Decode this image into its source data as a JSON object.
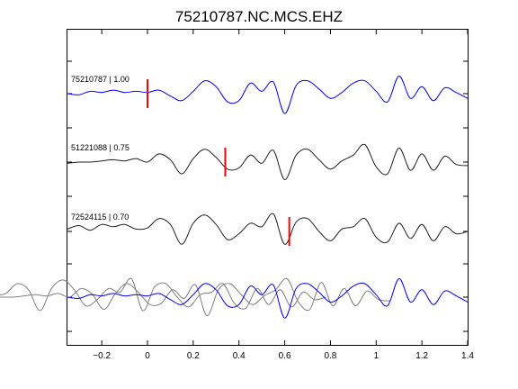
{
  "chart_data": {
    "type": "line",
    "title": "75210787.NC.MCS.EHZ",
    "xlabel": "",
    "ylabel": "",
    "xlim": [
      -0.35,
      1.4
    ],
    "xticks": [
      -0.2,
      0,
      0.2,
      0.4,
      0.6,
      0.8,
      1,
      1.2,
      1.4
    ],
    "xtick_labels": [
      "−0.2",
      "0",
      "0.2",
      "0.4",
      "0.6",
      "0.8",
      "1",
      "1.2",
      "1.4"
    ],
    "grid": false,
    "colors": {
      "reference": "#0000ff",
      "other": "#202020",
      "overlay_other": "#808080",
      "pick": "#ff0000"
    },
    "traces": [
      {
        "label": "75210787 | 1.00",
        "id": "75210787",
        "cc": 1.0,
        "pick_time": 0.0,
        "color": "#0000ff",
        "x": [
          -0.35,
          -0.3,
          -0.25,
          -0.2,
          -0.15,
          -0.1,
          -0.05,
          0,
          0.05,
          0.1,
          0.15,
          0.2,
          0.25,
          0.3,
          0.35,
          0.4,
          0.45,
          0.5,
          0.55,
          0.6,
          0.65,
          0.7,
          0.75,
          0.8,
          0.85,
          0.9,
          0.95,
          1.0,
          1.05,
          1.1,
          1.15,
          1.2,
          1.25,
          1.3,
          1.35,
          1.4
        ],
        "y": [
          0.0,
          -0.05,
          0.1,
          0.05,
          0.15,
          0.05,
          0.1,
          0.05,
          0.15,
          -0.1,
          -0.3,
          0.1,
          0.55,
          0.3,
          -0.35,
          -0.3,
          0.45,
          0.1,
          0.5,
          -0.85,
          0.35,
          0.55,
          0.2,
          -0.2,
          0.05,
          0.45,
          0.55,
          0.1,
          -0.35,
          0.75,
          -0.2,
          0.3,
          -0.3,
          0.25,
          0.05,
          -0.2
        ]
      },
      {
        "label": "51221088 | 0.75",
        "id": "51221088",
        "cc": 0.75,
        "pick_time": 0.34,
        "color": "#202020",
        "x": [
          -0.35,
          -0.3,
          -0.25,
          -0.2,
          -0.15,
          -0.1,
          -0.05,
          0,
          0.05,
          0.1,
          0.15,
          0.2,
          0.25,
          0.3,
          0.35,
          0.4,
          0.45,
          0.5,
          0.55,
          0.6,
          0.65,
          0.7,
          0.75,
          0.8,
          0.85,
          0.9,
          0.95,
          1.0,
          1.05,
          1.1,
          1.15,
          1.2,
          1.25,
          1.3,
          1.35,
          1.4
        ],
        "y": [
          -0.05,
          0.0,
          0.0,
          0.05,
          0.1,
          0.05,
          0.15,
          0.0,
          0.35,
          0.1,
          -0.5,
          0.15,
          0.55,
          0.2,
          -0.3,
          -0.25,
          0.3,
          -0.05,
          0.5,
          -0.75,
          0.3,
          0.55,
          0.1,
          -0.3,
          0.05,
          0.3,
          0.75,
          -0.2,
          -0.5,
          0.6,
          -0.35,
          0.35,
          -0.35,
          0.25,
          -0.1,
          -0.15
        ]
      },
      {
        "label": "72524115 | 0.70",
        "id": "72524115",
        "cc": 0.7,
        "pick_time": 0.62,
        "color": "#202020",
        "x": [
          -0.35,
          -0.3,
          -0.25,
          -0.2,
          -0.15,
          -0.1,
          -0.05,
          0,
          0.05,
          0.1,
          0.15,
          0.2,
          0.25,
          0.3,
          0.35,
          0.4,
          0.45,
          0.5,
          0.55,
          0.6,
          0.65,
          0.7,
          0.75,
          0.8,
          0.85,
          0.9,
          0.95,
          1.0,
          1.05,
          1.1,
          1.15,
          1.2,
          1.25,
          1.3,
          1.35,
          1.4
        ],
        "y": [
          0.1,
          0.25,
          0.05,
          0.3,
          0.2,
          0.3,
          0.1,
          0.15,
          0.55,
          0.3,
          -0.55,
          0.35,
          0.7,
          0.3,
          -0.35,
          -0.1,
          0.35,
          0.2,
          0.75,
          -0.55,
          0.4,
          0.55,
          0.0,
          -0.4,
          0.1,
          0.2,
          0.55,
          -0.25,
          -0.45,
          0.35,
          -0.3,
          0.3,
          -0.4,
          0.2,
          -0.1,
          0.0
        ]
      }
    ]
  }
}
